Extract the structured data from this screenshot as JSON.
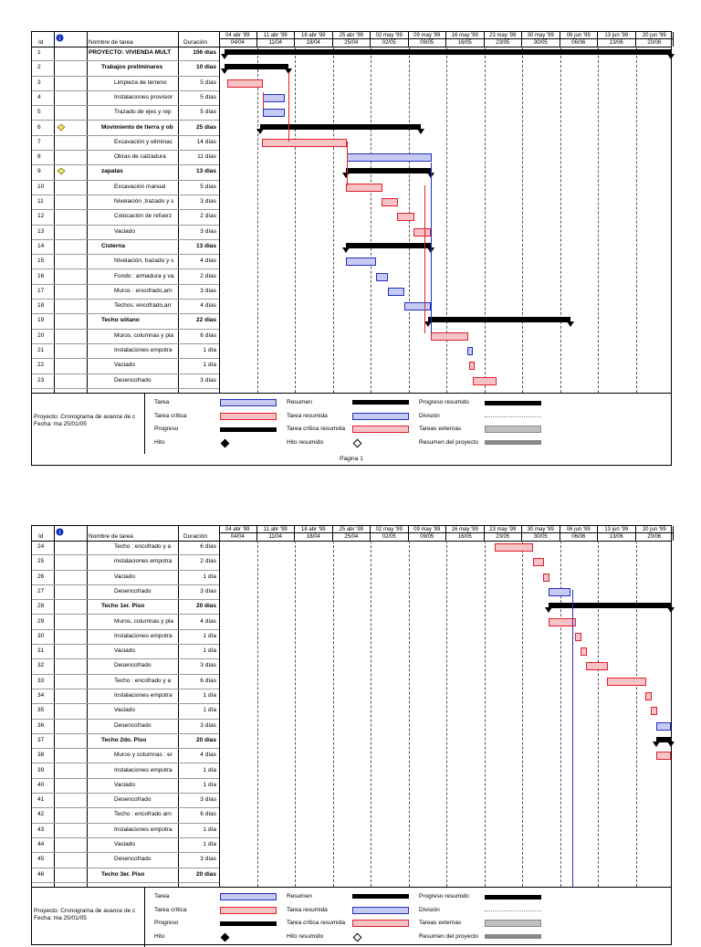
{
  "headers": {
    "id": "Id",
    "info_icon": "info-icon",
    "name": "Nombre de tarea",
    "duration": "Duración"
  },
  "weeks": [
    {
      "top": "04 abr '99",
      "bottom": "04/04"
    },
    {
      "top": "11 abr '99",
      "bottom": "11/04"
    },
    {
      "top": "18 abr '99",
      "bottom": "18/04"
    },
    {
      "top": "25 abr '99",
      "bottom": "25/04"
    },
    {
      "top": "02 may '99",
      "bottom": "02/05"
    },
    {
      "top": "09 may '99",
      "bottom": "09/05"
    },
    {
      "top": "16 may '99",
      "bottom": "16/05"
    },
    {
      "top": "23 may '99",
      "bottom": "23/05"
    },
    {
      "top": "30 may '99",
      "bottom": "30/05"
    },
    {
      "top": "06 jun '99",
      "bottom": "06/06"
    },
    {
      "top": "13 jun '99",
      "bottom": "13/06"
    },
    {
      "top": "20 jun '99",
      "bottom": "20/06"
    }
  ],
  "page1_rows": [
    {
      "id": "1",
      "name": "PROYECTO: VIVIENDA MULT",
      "dur": "156 días",
      "bold": true,
      "indent": 0
    },
    {
      "id": "2",
      "name": "Trabajos preliminares",
      "dur": "10 días",
      "bold": true,
      "indent": 1
    },
    {
      "id": "3",
      "name": "Limpieza de terreno",
      "dur": "5 días",
      "bold": false,
      "indent": 2
    },
    {
      "id": "4",
      "name": "Instalaciones provisior",
      "dur": "5 días",
      "bold": false,
      "indent": 2
    },
    {
      "id": "5",
      "name": "Trazado de ejes y rep",
      "dur": "5 días",
      "bold": false,
      "indent": 2
    },
    {
      "id": "6",
      "name": "Movimiento de tierra y ob",
      "dur": "25 días",
      "bold": true,
      "indent": 1,
      "note": true
    },
    {
      "id": "7",
      "name": "Excavación y eliminac",
      "dur": "14 días",
      "bold": false,
      "indent": 2
    },
    {
      "id": "8",
      "name": "Obras de calzadura",
      "dur": "11 días",
      "bold": false,
      "indent": 2
    },
    {
      "id": "9",
      "name": "zapatas",
      "dur": "13 días",
      "bold": true,
      "indent": 1,
      "note": true
    },
    {
      "id": "10",
      "name": "Excavación manual",
      "dur": "5 días",
      "bold": false,
      "indent": 2
    },
    {
      "id": "11",
      "name": "Nivelación ,trazado y s",
      "dur": "3 días",
      "bold": false,
      "indent": 2
    },
    {
      "id": "12",
      "name": "Colocación de refuerz",
      "dur": "2 días",
      "bold": false,
      "indent": 2
    },
    {
      "id": "13",
      "name": "Vaciado",
      "dur": "3 días",
      "bold": false,
      "indent": 2
    },
    {
      "id": "14",
      "name": "Cisterna",
      "dur": "13 días",
      "bold": true,
      "indent": 1
    },
    {
      "id": "15",
      "name": "Nivelación, trazado y s",
      "dur": "4 días",
      "bold": false,
      "indent": 2
    },
    {
      "id": "16",
      "name": "Fondo : armadura y va",
      "dur": "2 días",
      "bold": false,
      "indent": 2
    },
    {
      "id": "17",
      "name": "Muros : encofrado,arn",
      "dur": "3 días",
      "bold": false,
      "indent": 2
    },
    {
      "id": "18",
      "name": "Techos: encofrado,arr",
      "dur": "4 días",
      "bold": false,
      "indent": 2
    },
    {
      "id": "19",
      "name": "Techo sótano",
      "dur": "22 días",
      "bold": true,
      "indent": 1
    },
    {
      "id": "20",
      "name": "Muros, columnas y pla",
      "dur": "6 días",
      "bold": false,
      "indent": 2
    },
    {
      "id": "21",
      "name": "Instalaciones empotra",
      "dur": "1 día",
      "bold": false,
      "indent": 2
    },
    {
      "id": "22",
      "name": "Vaciado",
      "dur": "1 día",
      "bold": false,
      "indent": 2
    },
    {
      "id": "23",
      "name": "Desencofrado",
      "dur": "3 días",
      "bold": false,
      "indent": 2
    }
  ],
  "page2_rows": [
    {
      "id": "24",
      "name": "Techo : encofrado y a",
      "dur": "6 días",
      "bold": false,
      "indent": 2
    },
    {
      "id": "25",
      "name": "instalaciones empotra",
      "dur": "2 días",
      "bold": false,
      "indent": 2
    },
    {
      "id": "26",
      "name": "Vaciado",
      "dur": "1 día",
      "bold": false,
      "indent": 2
    },
    {
      "id": "27",
      "name": "Desencofrado",
      "dur": "3 días",
      "bold": false,
      "indent": 2
    },
    {
      "id": "28",
      "name": "Techo 1er. Piso",
      "dur": "20 días",
      "bold": true,
      "indent": 1
    },
    {
      "id": "29",
      "name": "Muros, columnas y pla",
      "dur": "4 días",
      "bold": false,
      "indent": 2
    },
    {
      "id": "30",
      "name": "Instalaciones empotra",
      "dur": "1 día",
      "bold": false,
      "indent": 2
    },
    {
      "id": "31",
      "name": "Vaciado",
      "dur": "1 día",
      "bold": false,
      "indent": 2
    },
    {
      "id": "32",
      "name": "Desencofrado",
      "dur": "3 días",
      "bold": false,
      "indent": 2
    },
    {
      "id": "33",
      "name": "Techo : encofrado y a",
      "dur": "6 días",
      "bold": false,
      "indent": 2
    },
    {
      "id": "34",
      "name": "Instalaciones empotra",
      "dur": "1 día",
      "bold": false,
      "indent": 2
    },
    {
      "id": "35",
      "name": "Vaciado",
      "dur": "1 día",
      "bold": false,
      "indent": 2
    },
    {
      "id": "36",
      "name": "Desencofrado",
      "dur": "3 días",
      "bold": false,
      "indent": 2
    },
    {
      "id": "37",
      "name": "Techo 2do. Piso",
      "dur": "20 días",
      "bold": true,
      "indent": 1
    },
    {
      "id": "38",
      "name": "Muros y columnas : er",
      "dur": "4 días",
      "bold": false,
      "indent": 2
    },
    {
      "id": "39",
      "name": "Instalaciones empotra",
      "dur": "1 día",
      "bold": false,
      "indent": 2
    },
    {
      "id": "40",
      "name": "Vaciado",
      "dur": "1 día",
      "bold": false,
      "indent": 2
    },
    {
      "id": "41",
      "name": "Desencofrado",
      "dur": "3 días",
      "bold": false,
      "indent": 2
    },
    {
      "id": "42",
      "name": "Techo : encofrado arn",
      "dur": "6 días",
      "bold": false,
      "indent": 2
    },
    {
      "id": "43",
      "name": "Instalaciones empotra",
      "dur": "1 día",
      "bold": false,
      "indent": 2
    },
    {
      "id": "44",
      "name": "Vaciado",
      "dur": "1 día",
      "bold": false,
      "indent": 2
    },
    {
      "id": "45",
      "name": "Desencofrado",
      "dur": "3 días",
      "bold": false,
      "indent": 2
    },
    {
      "id": "46",
      "name": "Techo 3er. Piso",
      "dur": "20 días",
      "bold": true,
      "indent": 1
    }
  ],
  "legend": {
    "project": "Proyecto: Cronograma de avance de c",
    "date": "Fecha: ma 25/01/05",
    "items": {
      "tarea": "Tarea",
      "tarea_critica": "Tarea crítica",
      "progreso": "Progreso",
      "hito": "Hito",
      "resumen": "Resumen",
      "tarea_resumida": "Tarea resumida",
      "tarea_critica_resumida": "Tarea crítica resumida",
      "hito_resumido": "Hito resumido",
      "progreso_resumido": "Progreso resumido",
      "division": "División",
      "tareas_externas": "Tareas externas",
      "resumen_proyecto": "Resumen del proyecto"
    }
  },
  "footer": "Página 1",
  "colors": {
    "critical": "#e0202c",
    "normal": "#2030c0",
    "critical_fill": "#f6c3c6",
    "normal_fill": "#c6cbf3"
  }
}
